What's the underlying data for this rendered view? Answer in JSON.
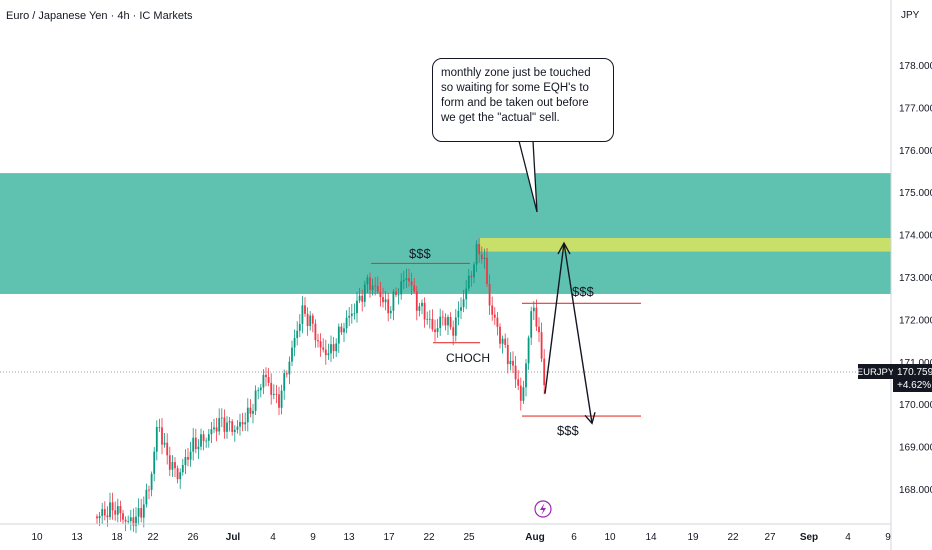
{
  "header": {
    "pair": "Euro / Japanese Yen",
    "separator": "·",
    "interval": "4h",
    "broker": "IC Markets"
  },
  "axis": {
    "currency": "JPY",
    "price_ticks": [
      "178.000",
      "177.000",
      "176.000",
      "175.000",
      "174.000",
      "173.000",
      "172.000",
      "171.000",
      "170.000",
      "169.000",
      "168.000"
    ],
    "time_ticks": [
      "10",
      "13",
      "18",
      "22",
      "26",
      "Jul",
      "4",
      "9",
      "13",
      "17",
      "22",
      "25",
      "Aug",
      "6",
      "10",
      "14",
      "19",
      "22",
      "27",
      "Sep",
      "4",
      "9"
    ]
  },
  "current": {
    "symbol": "EURJPY",
    "price": "170.759",
    "change": "+4.62%",
    "color": "#131722"
  },
  "annotations": {
    "callout_text": "monthly zone just be touched so waiting for some EQH's to form and be taken out before we get the \"actual\" sell.",
    "liquidity_label": "$$$",
    "choch_label": "CHOCH"
  },
  "colors": {
    "up_candle": "#089981",
    "down_candle": "#f23645",
    "zone": "#5fc2b1",
    "highlight_zone": "#c8e06a",
    "level_line": "#e53935"
  },
  "icons": [
    "lightning-event-icon"
  ],
  "chart_data": {
    "type": "candlestick",
    "title": "Euro / Japanese Yen · 4h · IC Markets",
    "y_axis_range": [
      167.3,
      179.5
    ],
    "zones": [
      {
        "role": "monthly-supply-zone",
        "from": 172.6,
        "to": 175.45
      },
      {
        "role": "target-zone",
        "from": 173.6,
        "to": 173.92
      }
    ],
    "key_levels": [
      {
        "label": "$$$",
        "price": 173.32,
        "date_from": "Jul 16",
        "date_to": "Jul 25"
      },
      {
        "label": "CHOCH",
        "price": 171.45,
        "date_from": "Jul 23",
        "date_to": "Jul 27"
      },
      {
        "label": "$$$",
        "price": 172.38,
        "date_from": "Jul 30",
        "date_to": "Aug 12"
      },
      {
        "label": "$$$",
        "price": 169.72,
        "date_from": "Jul 30",
        "date_to": "Aug 12"
      }
    ],
    "projected_path": [
      173.8,
      170.25,
      173.8,
      169.55
    ],
    "last_price": 170.759,
    "change_percent": 4.62,
    "grid": false
  }
}
